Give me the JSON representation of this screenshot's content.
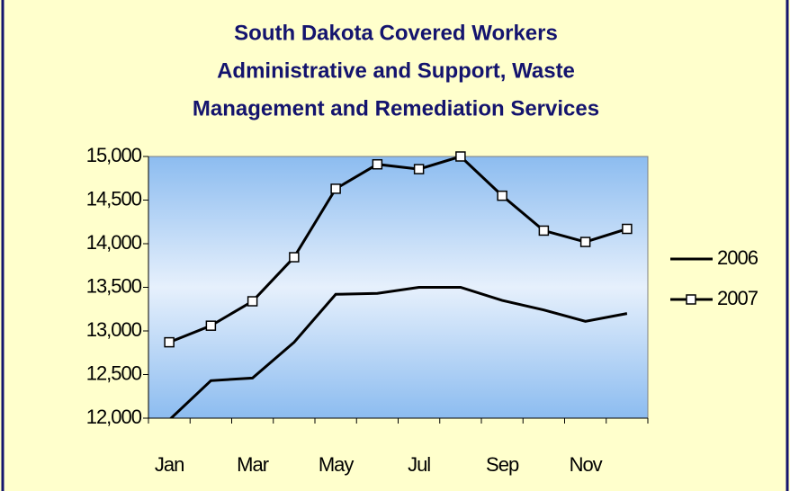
{
  "chart_data": {
    "type": "line",
    "title": [
      "South Dakota Covered Workers",
      "Administrative and Support, Waste",
      "Management and Remediation Services"
    ],
    "categories": [
      "Jan",
      null,
      "Mar",
      null,
      "May",
      null,
      "Jul",
      null,
      "Sep",
      null,
      "Nov",
      null
    ],
    "series": [
      {
        "name": "2006",
        "color": "#000000",
        "marker": "none",
        "values": [
          11980,
          12430,
          12460,
          12870,
          13420,
          13430,
          13500,
          13500,
          13350,
          13240,
          13110,
          13200
        ]
      },
      {
        "name": "2007",
        "color": "#000000",
        "marker": "square",
        "values": [
          12870,
          13060,
          13340,
          13845,
          14630,
          14910,
          14855,
          15000,
          14550,
          14150,
          14020,
          14170
        ]
      }
    ],
    "ylim": [
      12000,
      15000
    ],
    "yticks": [
      {
        "value": 12000,
        "label": "12,000"
      },
      {
        "value": 12500,
        "label": "12,500"
      },
      {
        "value": 13000,
        "label": "13,000"
      },
      {
        "value": 13500,
        "label": "13,500"
      },
      {
        "value": 14000,
        "label": "14,000"
      },
      {
        "value": 14500,
        "label": "14,500"
      },
      {
        "value": 15000,
        "label": "15,000"
      }
    ],
    "legend": "right"
  }
}
